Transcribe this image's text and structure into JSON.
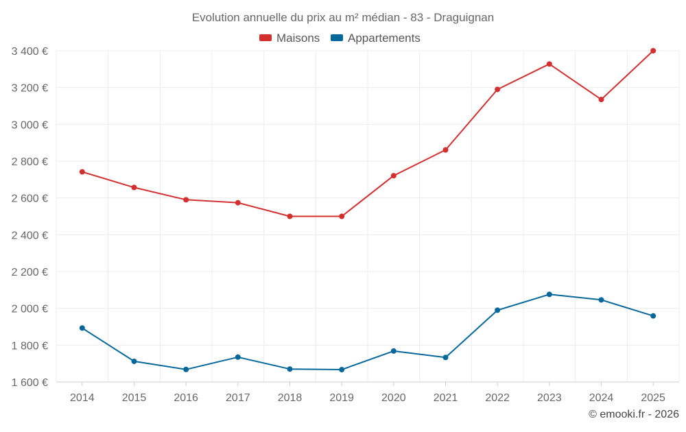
{
  "chart_data": {
    "type": "line",
    "title": "Evolution annuelle du prix au m² médian - 83 - Draguignan",
    "categories": [
      "2014",
      "2015",
      "2016",
      "2017",
      "2018",
      "2019",
      "2020",
      "2021",
      "2022",
      "2023",
      "2024",
      "2025"
    ],
    "series": [
      {
        "name": "Maisons",
        "color": "#d32f2f",
        "values": [
          2742,
          2657,
          2590,
          2574,
          2500,
          2500,
          2721,
          2861,
          3190,
          3328,
          3135,
          3400
        ]
      },
      {
        "name": "Appartements",
        "color": "#06679b",
        "values": [
          1893,
          1712,
          1668,
          1735,
          1670,
          1667,
          1768,
          1733,
          1990,
          2076,
          2046,
          1959
        ]
      }
    ],
    "ylim": [
      1600,
      3400
    ],
    "yticks": [
      1600,
      1800,
      2000,
      2200,
      2400,
      2600,
      2800,
      3000,
      3200,
      3400
    ],
    "ytick_labels": [
      "1 600 €",
      "1 800 €",
      "2 000 €",
      "2 200 €",
      "2 400 €",
      "2 600 €",
      "2 800 €",
      "3 000 €",
      "3 200 €",
      "3 400 €"
    ],
    "xlabel": "",
    "ylabel": "",
    "grid": true,
    "legend_position": "top-center"
  },
  "credit": "© emooki.fr - 2026"
}
